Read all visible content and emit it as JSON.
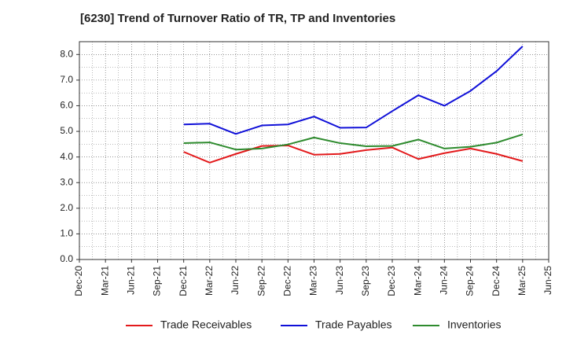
{
  "chart_data": {
    "type": "line",
    "title": "[6230]  Trend of Turnover Ratio of TR, TP and Inventories",
    "xlabel": "",
    "ylabel": "",
    "x_ticks": [
      "Dec-20",
      "Mar-21",
      "Jun-21",
      "Sep-21",
      "Dec-21",
      "Mar-22",
      "Jun-22",
      "Sep-22",
      "Dec-22",
      "Mar-23",
      "Jun-23",
      "Sep-23",
      "Dec-23",
      "Mar-24",
      "Jun-24",
      "Sep-24",
      "Dec-24",
      "Mar-25",
      "Jun-25"
    ],
    "y_ticks": [
      "0.0",
      "1.0",
      "2.0",
      "3.0",
      "4.0",
      "5.0",
      "6.0",
      "7.0",
      "8.0"
    ],
    "ylim": [
      0,
      8.5
    ],
    "grid": true,
    "legend_position": "bottom",
    "x": [
      "Dec-21",
      "Mar-22",
      "Jun-22",
      "Sep-22",
      "Dec-22",
      "Mar-23",
      "Jun-23",
      "Sep-23",
      "Dec-23",
      "Mar-24",
      "Jun-24",
      "Sep-24",
      "Dec-24",
      "Mar-25"
    ],
    "series": [
      {
        "name": "Trade Receivables",
        "color": "#e31a1c",
        "values": [
          4.2,
          3.78,
          4.12,
          4.43,
          4.45,
          4.09,
          4.12,
          4.27,
          4.37,
          3.92,
          4.15,
          4.33,
          4.12,
          3.84
        ]
      },
      {
        "name": "Trade Payables",
        "color": "#1010d8",
        "values": [
          5.27,
          5.3,
          4.9,
          5.23,
          5.27,
          5.58,
          5.14,
          5.15,
          5.79,
          6.41,
          6.0,
          6.58,
          7.35,
          8.32
        ]
      },
      {
        "name": "Inventories",
        "color": "#2e8b2e",
        "values": [
          4.54,
          4.57,
          4.29,
          4.33,
          4.49,
          4.76,
          4.54,
          4.42,
          4.43,
          4.68,
          4.33,
          4.4,
          4.56,
          4.88
        ]
      }
    ]
  }
}
